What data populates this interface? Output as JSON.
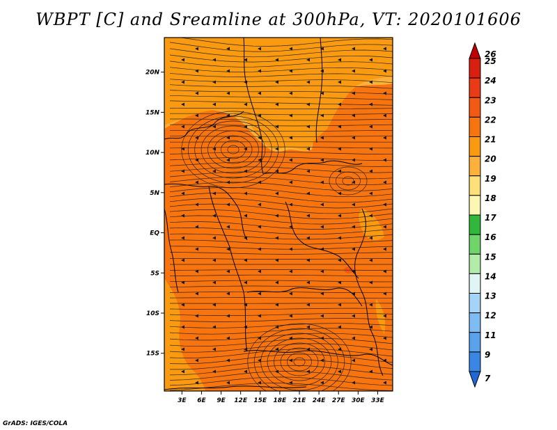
{
  "title": "WBPT [C] and Sreamline at 300hPa, VT: 2020101606",
  "credit": "GrADS: IGES/COLA",
  "map": {
    "lat_ticks": [
      {
        "value": 20,
        "label": "20N"
      },
      {
        "value": 15,
        "label": "15N"
      },
      {
        "value": 10,
        "label": "10N"
      },
      {
        "value": 5,
        "label": "5N"
      },
      {
        "value": 0,
        "label": "EQ"
      },
      {
        "value": -5,
        "label": "5S"
      },
      {
        "value": -10,
        "label": "10S"
      },
      {
        "value": -15,
        "label": "15S"
      }
    ],
    "lon_ticks": [
      {
        "value": 3,
        "label": "3E"
      },
      {
        "value": 6,
        "label": "6E"
      },
      {
        "value": 9,
        "label": "9E"
      },
      {
        "value": 12,
        "label": "12E"
      },
      {
        "value": 15,
        "label": "15E"
      },
      {
        "value": 18,
        "label": "18E"
      },
      {
        "value": 21,
        "label": "21E"
      },
      {
        "value": 24,
        "label": "24E"
      },
      {
        "value": 27,
        "label": "27E"
      },
      {
        "value": 30,
        "label": "30E"
      },
      {
        "value": 33,
        "label": "33E"
      }
    ],
    "lon_range": [
      0.3,
      35.3
    ],
    "lat_range": [
      -19.7,
      24.3
    ]
  },
  "colorbar": {
    "levels": [
      {
        "label": "26",
        "color": "#c00000"
      },
      {
        "label": "25",
        "color": "#d81f10"
      },
      {
        "label": "24",
        "color": "#ea3a16"
      },
      {
        "label": "23",
        "color": "#f25a14"
      },
      {
        "label": "22",
        "color": "#f7740e"
      },
      {
        "label": "21",
        "color": "#fa9a10"
      },
      {
        "label": "20",
        "color": "#fcb23a"
      },
      {
        "label": "19",
        "color": "#fde07a"
      },
      {
        "label": "18",
        "color": "#fef7b4"
      },
      {
        "label": "17",
        "color": "#2fb83a"
      },
      {
        "label": "16",
        "color": "#6fd46a"
      },
      {
        "label": "15",
        "color": "#b2eca8"
      },
      {
        "label": "14",
        "color": "#e0f6f4"
      },
      {
        "label": "13",
        "color": "#a6d4f8"
      },
      {
        "label": "12",
        "color": "#7ebcf2"
      },
      {
        "label": "11",
        "color": "#5aa2ec"
      },
      {
        "label": "9",
        "color": "#3a86e4"
      },
      {
        "label": "7",
        "color": "#1f68d6"
      }
    ]
  }
}
